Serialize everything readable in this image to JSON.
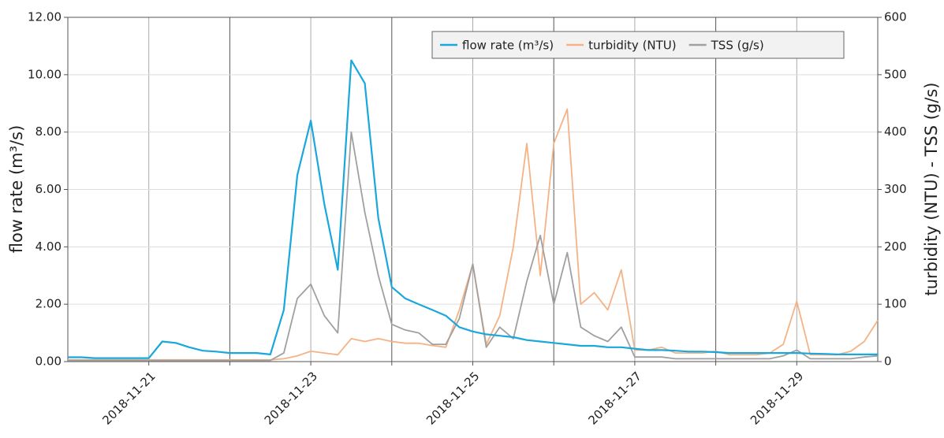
{
  "chart_data": {
    "type": "line",
    "x": [
      "2018-11-20 00:00",
      "2018-11-20 04:00",
      "2018-11-20 08:00",
      "2018-11-20 12:00",
      "2018-11-20 16:00",
      "2018-11-20 20:00",
      "2018-11-21 00:00",
      "2018-11-21 04:00",
      "2018-11-21 08:00",
      "2018-11-21 12:00",
      "2018-11-21 16:00",
      "2018-11-21 20:00",
      "2018-11-22 00:00",
      "2018-11-22 04:00",
      "2018-11-22 08:00",
      "2018-11-22 12:00",
      "2018-11-22 16:00",
      "2018-11-22 20:00",
      "2018-11-23 00:00",
      "2018-11-23 04:00",
      "2018-11-23 08:00",
      "2018-11-23 12:00",
      "2018-11-23 16:00",
      "2018-11-23 20:00",
      "2018-11-24 00:00",
      "2018-11-24 04:00",
      "2018-11-24 08:00",
      "2018-11-24 12:00",
      "2018-11-24 16:00",
      "2018-11-24 20:00",
      "2018-11-25 00:00",
      "2018-11-25 04:00",
      "2018-11-25 08:00",
      "2018-11-25 12:00",
      "2018-11-25 16:00",
      "2018-11-25 20:00",
      "2018-11-26 00:00",
      "2018-11-26 04:00",
      "2018-11-26 08:00",
      "2018-11-26 12:00",
      "2018-11-26 16:00",
      "2018-11-26 20:00",
      "2018-11-27 00:00",
      "2018-11-27 04:00",
      "2018-11-27 08:00",
      "2018-11-27 12:00",
      "2018-11-27 16:00",
      "2018-11-27 20:00",
      "2018-11-28 00:00",
      "2018-11-28 04:00",
      "2018-11-28 08:00",
      "2018-11-28 12:00",
      "2018-11-28 16:00",
      "2018-11-28 20:00",
      "2018-11-29 00:00",
      "2018-11-29 04:00",
      "2018-11-29 08:00",
      "2018-11-29 12:00",
      "2018-11-29 16:00",
      "2018-11-29 20:00",
      "2018-11-30 00:00"
    ],
    "series": [
      {
        "name": "flow rate (m³/s)",
        "color": "#1aa7dc",
        "values": [
          0.15,
          0.15,
          0.12,
          0.12,
          0.12,
          0.12,
          0.12,
          0.7,
          0.65,
          0.5,
          0.38,
          0.35,
          0.3,
          0.3,
          0.3,
          0.25,
          1.8,
          6.5,
          8.4,
          5.5,
          3.2,
          10.5,
          9.7,
          5.0,
          2.6,
          2.2,
          2.0,
          1.8,
          1.6,
          1.2,
          1.05,
          0.95,
          0.9,
          0.85,
          0.75,
          0.7,
          0.65,
          0.6,
          0.55,
          0.55,
          0.5,
          0.5,
          0.45,
          0.4,
          0.4,
          0.38,
          0.35,
          0.35,
          0.33,
          0.3,
          0.3,
          0.3,
          0.3,
          0.3,
          0.3,
          0.28,
          0.27,
          0.25,
          0.25,
          0.25,
          0.25
        ]
      },
      {
        "name": "turbidity (NTU)",
        "color": "#f5b285",
        "axis": "y2",
        "values": [
          3,
          3,
          3,
          3,
          3,
          3,
          3,
          3,
          3,
          3,
          3,
          3,
          3,
          3,
          3,
          3,
          5,
          10,
          18,
          15,
          12,
          40,
          35,
          40,
          35,
          32,
          32,
          28,
          25,
          90,
          170,
          30,
          80,
          200,
          380,
          150,
          380,
          440,
          100,
          120,
          90,
          160,
          20,
          20,
          25,
          15,
          15,
          15,
          18,
          12,
          12,
          12,
          15,
          30,
          105,
          12,
          12,
          12,
          18,
          35,
          72
        ]
      },
      {
        "name": "TSS (g/s)",
        "color": "#a0a0a0",
        "axis": "y2",
        "values": [
          2,
          2,
          2,
          2,
          2,
          2,
          2,
          2,
          2,
          2,
          2,
          2,
          2,
          2,
          2,
          2,
          15,
          110,
          135,
          80,
          50,
          400,
          260,
          150,
          65,
          55,
          50,
          30,
          30,
          75,
          170,
          25,
          60,
          40,
          140,
          220,
          100,
          190,
          60,
          45,
          35,
          60,
          8,
          8,
          8,
          5,
          5,
          5,
          5,
          5,
          5,
          5,
          5,
          10,
          20,
          5,
          5,
          5,
          5,
          8,
          10
        ]
      }
    ],
    "xlim": [
      "2018-11-20 00:00",
      "2018-11-30 00:00"
    ],
    "xticks": [
      "2018-11-21",
      {
        "value": "2018-11-22",
        "label": null
      },
      "2018-11-23",
      {
        "value": "2018-11-24",
        "label": null
      },
      "2018-11-25",
      {
        "value": "2018-11-26",
        "label": null
      },
      "2018-11-27",
      {
        "value": "2018-11-28",
        "label": null
      },
      "2018-11-29"
    ],
    "ylim": [
      0,
      12
    ],
    "yticks": [
      {
        "value": 0,
        "label": "0.00"
      },
      {
        "value": 2,
        "label": "2.00"
      },
      {
        "value": 4,
        "label": "4.00"
      },
      {
        "value": 6,
        "label": "6.00"
      },
      {
        "value": 8,
        "label": "8.00"
      },
      {
        "value": 10,
        "label": "10.00"
      },
      {
        "value": 12,
        "label": "12.00"
      }
    ],
    "y2lim": [
      0,
      600
    ],
    "y2ticks": [
      0,
      100,
      200,
      300,
      400,
      500,
      600
    ],
    "ylabel": "flow rate (m³/s)",
    "y2label": "turbidity (NTU) - TSS (g/s)",
    "grid": true,
    "legend": "top-right"
  }
}
